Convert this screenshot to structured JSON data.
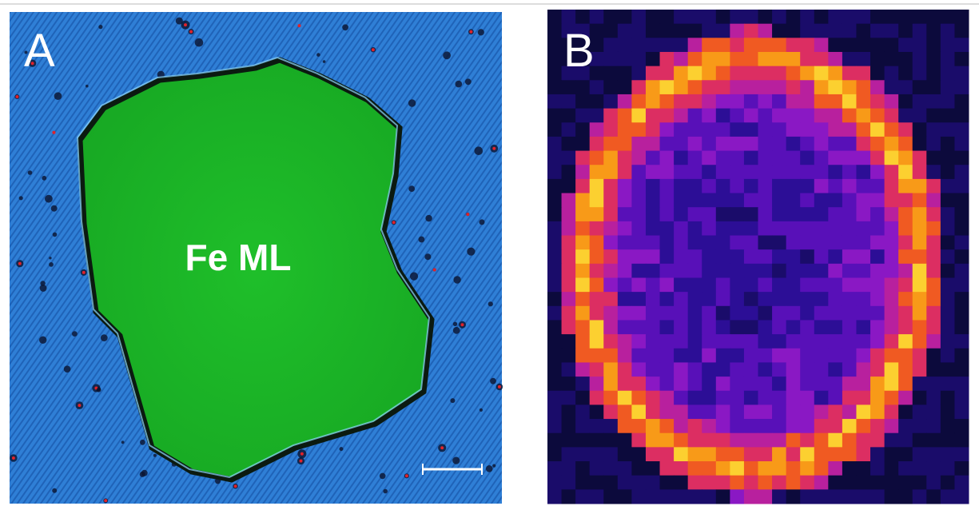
{
  "panels": [
    {
      "label": "A",
      "annotation": "Fe ML"
    },
    {
      "label": "B"
    }
  ]
}
